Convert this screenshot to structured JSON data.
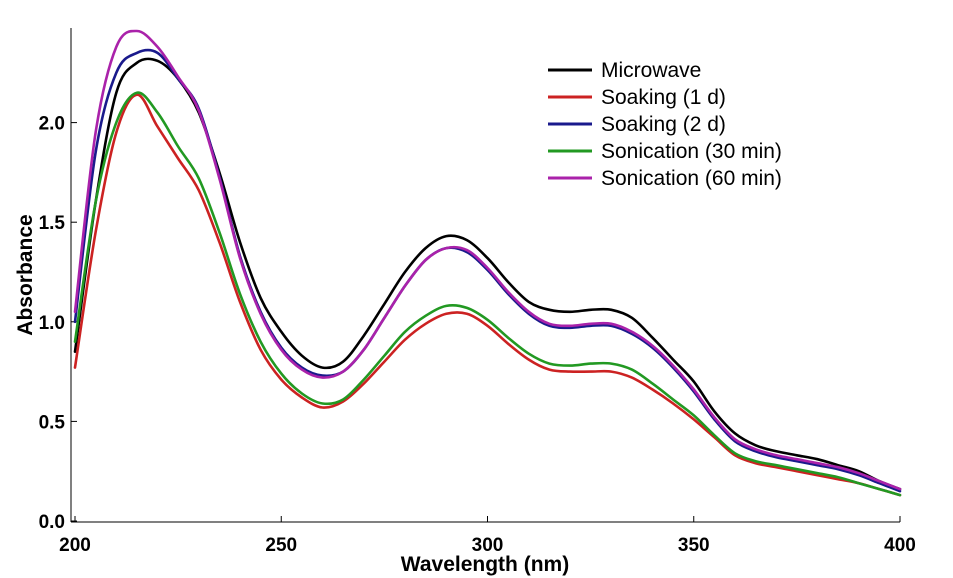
{
  "chart_data": {
    "type": "line",
    "title": "",
    "xlabel": "Wavelength (nm)",
    "ylabel": "Absorbance",
    "xlim": [
      200,
      400
    ],
    "ylim": [
      0,
      2.5
    ],
    "xticks": [
      200,
      250,
      300,
      350,
      400
    ],
    "xtick_labels": [
      "200",
      "250",
      "300",
      "350",
      "400"
    ],
    "yticks": [
      0.0,
      0.5,
      1.0,
      1.5,
      2.0
    ],
    "ytick_labels": [
      "0.0",
      "0.5",
      "1.0",
      "1.5",
      "2.0"
    ],
    "grid": false,
    "legend_position": "top-right",
    "x": [
      200,
      205,
      210,
      215,
      220,
      225,
      230,
      235,
      240,
      245,
      250,
      255,
      260,
      265,
      270,
      275,
      280,
      285,
      290,
      295,
      300,
      305,
      310,
      315,
      320,
      325,
      330,
      335,
      340,
      345,
      350,
      355,
      360,
      365,
      370,
      375,
      380,
      385,
      390,
      395,
      400
    ],
    "series": [
      {
        "name": "Microwave",
        "color": "#000000",
        "values": [
          0.85,
          1.6,
          2.15,
          2.3,
          2.31,
          2.22,
          2.05,
          1.75,
          1.4,
          1.12,
          0.95,
          0.83,
          0.77,
          0.8,
          0.93,
          1.09,
          1.25,
          1.37,
          1.43,
          1.41,
          1.32,
          1.2,
          1.1,
          1.06,
          1.05,
          1.06,
          1.06,
          1.02,
          0.92,
          0.81,
          0.7,
          0.55,
          0.44,
          0.38,
          0.35,
          0.33,
          0.31,
          0.28,
          0.25,
          0.2,
          0.16
        ]
      },
      {
        "name": "Soaking (1 d)",
        "color": "#cc2222",
        "values": [
          0.77,
          1.45,
          1.95,
          2.14,
          1.98,
          1.82,
          1.66,
          1.4,
          1.1,
          0.86,
          0.71,
          0.62,
          0.57,
          0.6,
          0.69,
          0.8,
          0.91,
          0.99,
          1.04,
          1.04,
          0.98,
          0.89,
          0.81,
          0.76,
          0.75,
          0.75,
          0.75,
          0.72,
          0.66,
          0.59,
          0.51,
          0.42,
          0.33,
          0.29,
          0.27,
          0.25,
          0.23,
          0.21,
          0.19,
          0.16,
          0.13
        ]
      },
      {
        "name": "Soaking (2 d)",
        "color": "#1a1a8c",
        "values": [
          1.0,
          1.85,
          2.25,
          2.35,
          2.35,
          2.22,
          2.07,
          1.73,
          1.33,
          1.05,
          0.87,
          0.77,
          0.73,
          0.75,
          0.86,
          1.02,
          1.18,
          1.31,
          1.37,
          1.35,
          1.26,
          1.14,
          1.04,
          0.98,
          0.97,
          0.98,
          0.98,
          0.94,
          0.87,
          0.77,
          0.65,
          0.51,
          0.4,
          0.35,
          0.32,
          0.3,
          0.28,
          0.26,
          0.23,
          0.19,
          0.15
        ]
      },
      {
        "name": "Sonication (30 min)",
        "color": "#229922",
        "values": [
          0.9,
          1.6,
          2.0,
          2.15,
          2.05,
          1.88,
          1.72,
          1.45,
          1.14,
          0.9,
          0.74,
          0.64,
          0.59,
          0.61,
          0.71,
          0.83,
          0.95,
          1.03,
          1.08,
          1.07,
          1.01,
          0.92,
          0.84,
          0.79,
          0.78,
          0.79,
          0.79,
          0.76,
          0.69,
          0.61,
          0.53,
          0.43,
          0.34,
          0.3,
          0.28,
          0.26,
          0.24,
          0.22,
          0.19,
          0.16,
          0.13
        ]
      },
      {
        "name": "Sonication (60 min)",
        "color": "#aa22aa",
        "values": [
          1.05,
          1.95,
          2.38,
          2.46,
          2.38,
          2.23,
          2.06,
          1.72,
          1.32,
          1.04,
          0.86,
          0.76,
          0.72,
          0.75,
          0.86,
          1.02,
          1.18,
          1.31,
          1.37,
          1.36,
          1.27,
          1.15,
          1.05,
          0.99,
          0.98,
          0.99,
          0.99,
          0.95,
          0.88,
          0.78,
          0.66,
          0.52,
          0.41,
          0.36,
          0.33,
          0.31,
          0.29,
          0.27,
          0.24,
          0.2,
          0.16
        ]
      }
    ]
  }
}
